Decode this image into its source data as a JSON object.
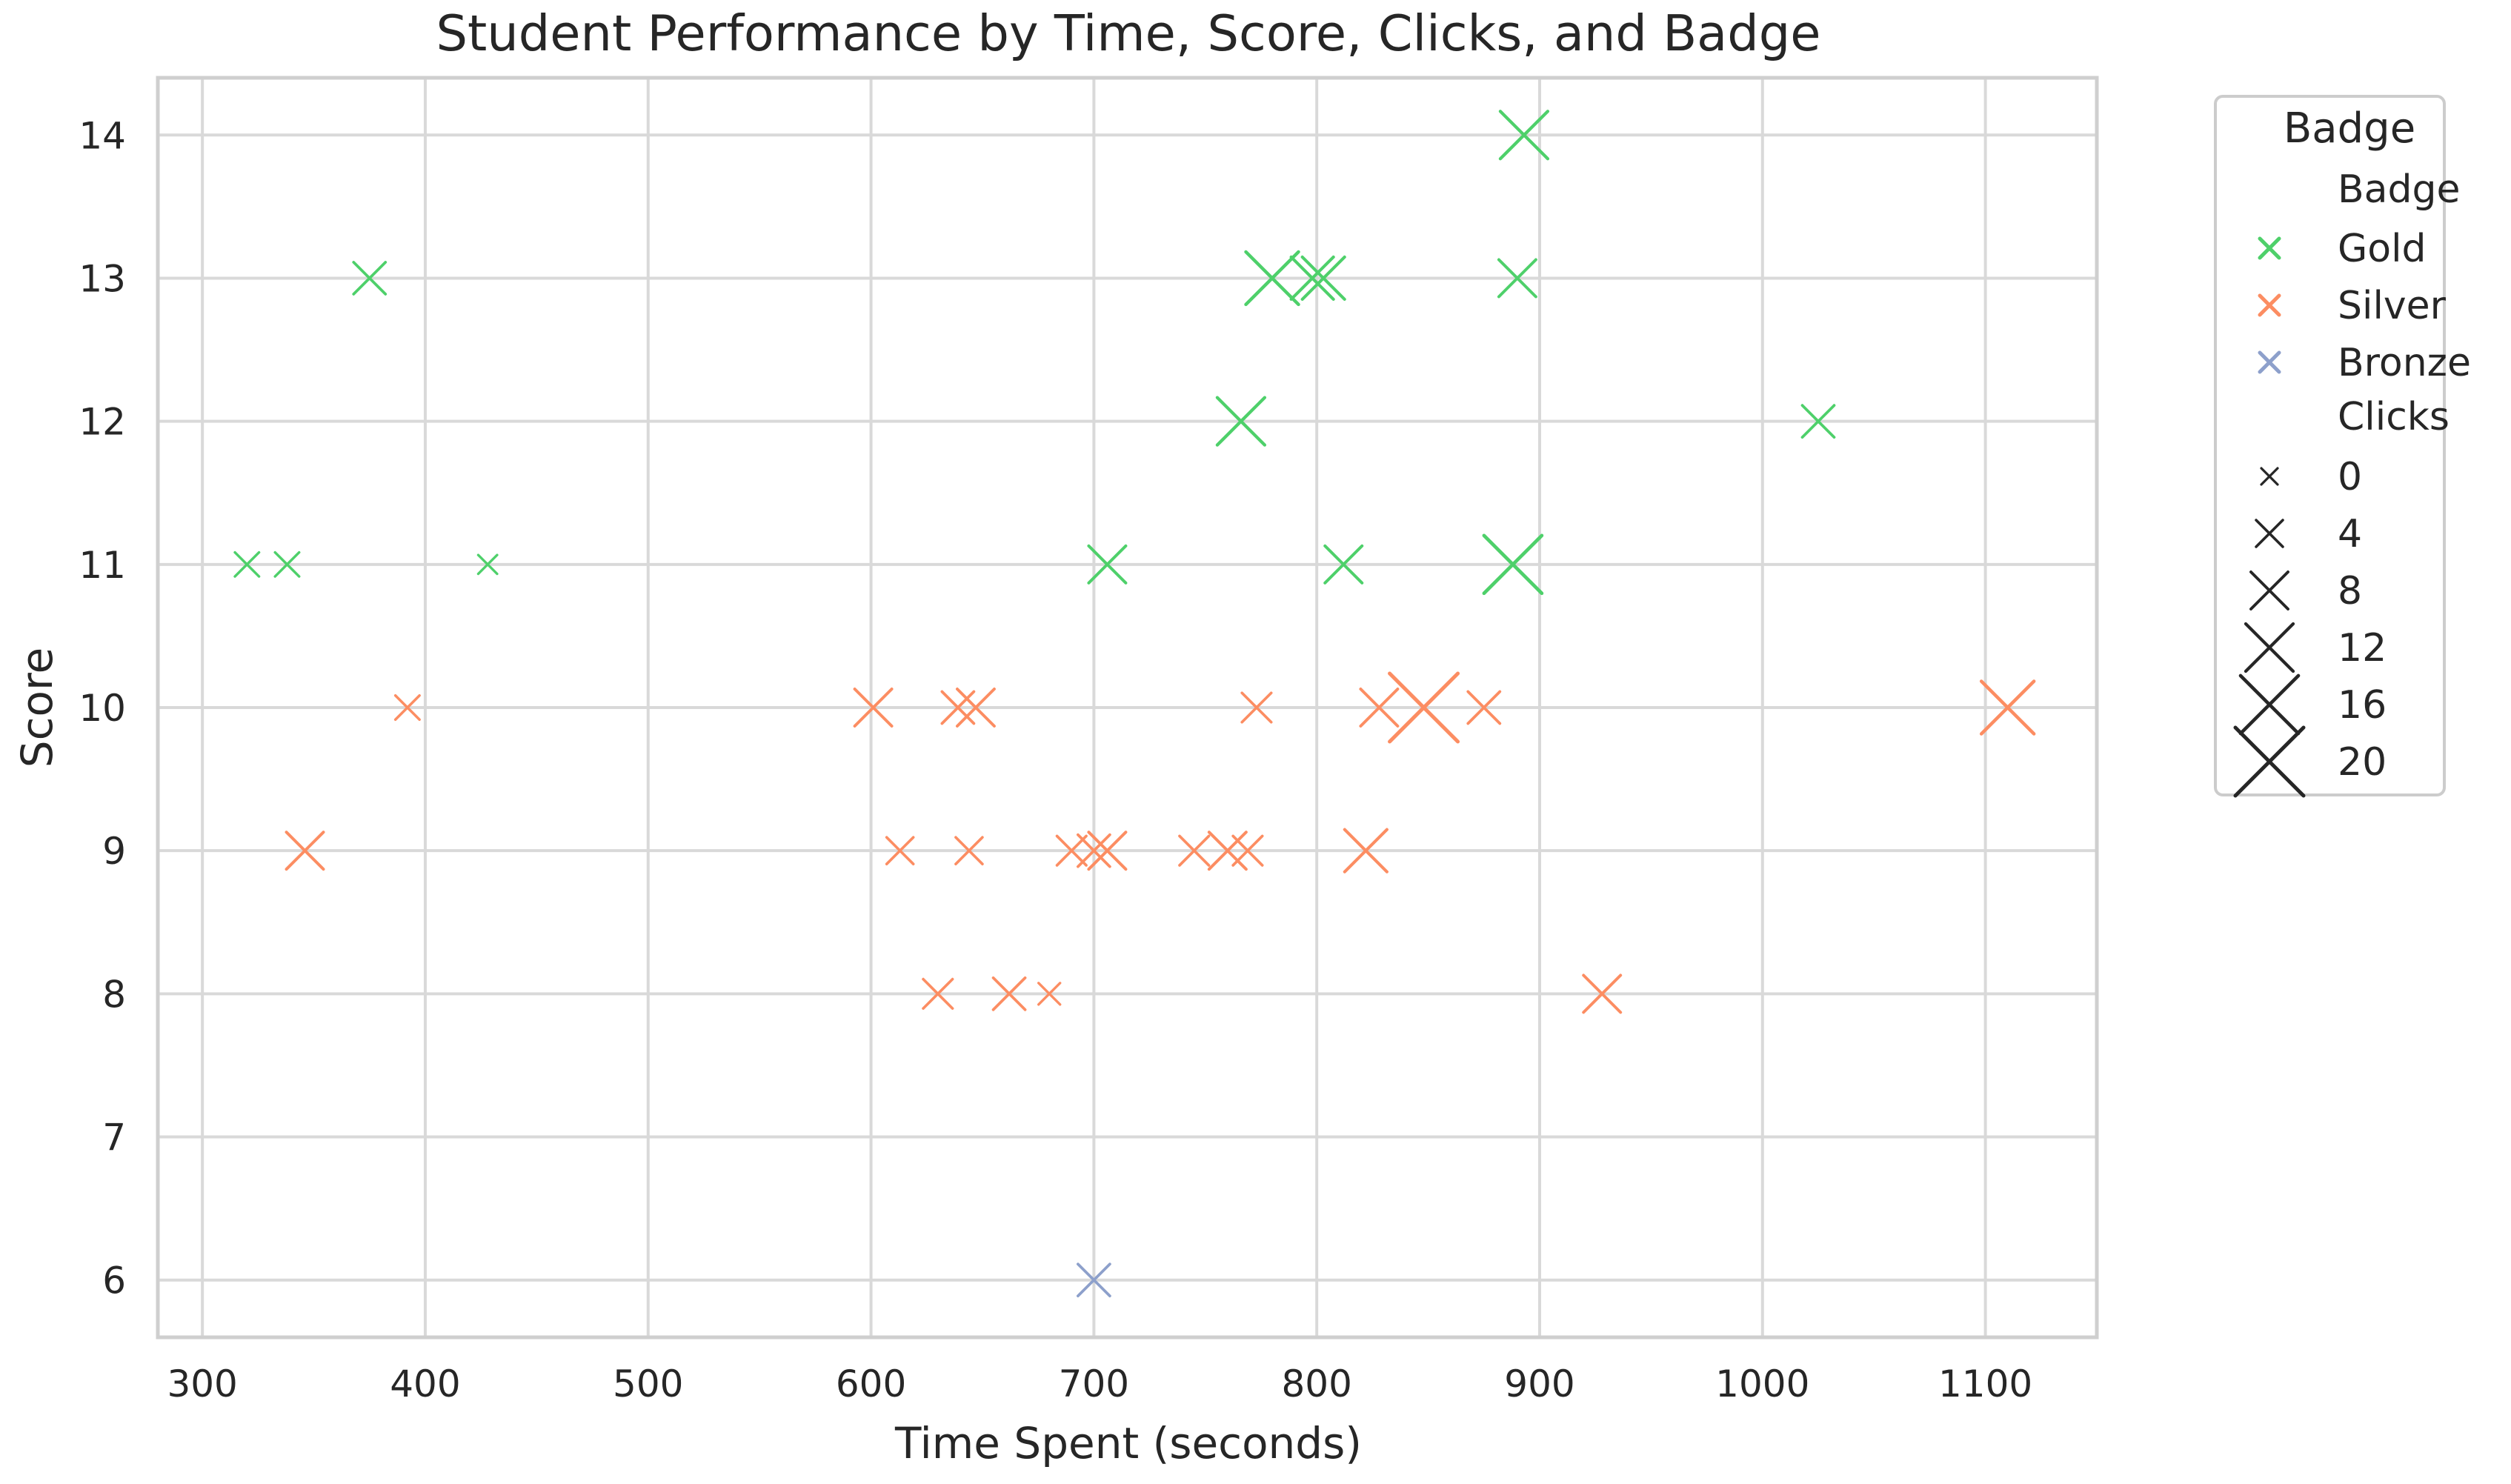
{
  "chart_data": {
    "type": "scatter",
    "title": "Student Performance by Time, Score, Clicks, and Badge",
    "xlabel": "Time Spent (seconds)",
    "ylabel": "Score",
    "xlim": [
      280,
      1150
    ],
    "ylim": [
      5.6,
      14.4
    ],
    "xticks": [
      300,
      400,
      500,
      600,
      700,
      800,
      900,
      1000,
      1100
    ],
    "yticks": [
      6,
      7,
      8,
      9,
      10,
      11,
      12,
      13,
      14
    ],
    "grid": true,
    "marker": "x",
    "legend": {
      "placement": "outside-right",
      "title": "Badge",
      "hue_title": "Badge",
      "size_title": "Clicks",
      "size_values": [
        0,
        4,
        8,
        12,
        16,
        20
      ]
    },
    "series": [
      {
        "name": "Gold",
        "color": "#4ed06a",
        "points": [
          {
            "x": 375,
            "y": 13,
            "clicks": 6
          },
          {
            "x": 320,
            "y": 11,
            "clicks": 3
          },
          {
            "x": 338,
            "y": 11,
            "clicks": 3
          },
          {
            "x": 428,
            "y": 11,
            "clicks": 1
          },
          {
            "x": 706,
            "y": 11,
            "clicks": 8
          },
          {
            "x": 812,
            "y": 11,
            "clicks": 8
          },
          {
            "x": 888,
            "y": 11,
            "clicks": 16
          },
          {
            "x": 766,
            "y": 12,
            "clicks": 12
          },
          {
            "x": 1025,
            "y": 12,
            "clicks": 6
          },
          {
            "x": 780,
            "y": 13,
            "clicks": 14
          },
          {
            "x": 798,
            "y": 13,
            "clicks": 10
          },
          {
            "x": 803,
            "y": 13,
            "clicks": 10
          },
          {
            "x": 890,
            "y": 13,
            "clicks": 8
          },
          {
            "x": 893,
            "y": 14,
            "clicks": 12
          }
        ]
      },
      {
        "name": "Silver",
        "color": "#fc8d62",
        "points": [
          {
            "x": 392,
            "y": 10,
            "clicks": 3
          },
          {
            "x": 346,
            "y": 9,
            "clicks": 8
          },
          {
            "x": 601,
            "y": 10,
            "clicks": 8
          },
          {
            "x": 639,
            "y": 10,
            "clicks": 6
          },
          {
            "x": 647,
            "y": 10,
            "clicks": 8
          },
          {
            "x": 773,
            "y": 10,
            "clicks": 5
          },
          {
            "x": 828,
            "y": 10,
            "clicks": 8
          },
          {
            "x": 848,
            "y": 10,
            "clicks": 20
          },
          {
            "x": 875,
            "y": 10,
            "clicks": 6
          },
          {
            "x": 1110,
            "y": 10,
            "clicks": 14
          },
          {
            "x": 613,
            "y": 9,
            "clicks": 4
          },
          {
            "x": 644,
            "y": 9,
            "clicks": 4
          },
          {
            "x": 690,
            "y": 9,
            "clicks": 5
          },
          {
            "x": 700,
            "y": 9,
            "clicks": 6
          },
          {
            "x": 706,
            "y": 9,
            "clicks": 8
          },
          {
            "x": 745,
            "y": 9,
            "clicks": 5
          },
          {
            "x": 760,
            "y": 9,
            "clicks": 8
          },
          {
            "x": 769,
            "y": 9,
            "clicks": 5
          },
          {
            "x": 822,
            "y": 9,
            "clicks": 10
          },
          {
            "x": 630,
            "y": 8,
            "clicks": 5
          },
          {
            "x": 662,
            "y": 8,
            "clicks": 6
          },
          {
            "x": 680,
            "y": 8,
            "clicks": 2
          },
          {
            "x": 928,
            "y": 8,
            "clicks": 8
          }
        ]
      },
      {
        "name": "Bronze",
        "color": "#8da0cb",
        "points": [
          {
            "x": 700,
            "y": 6,
            "clicks": 6
          }
        ]
      }
    ]
  }
}
